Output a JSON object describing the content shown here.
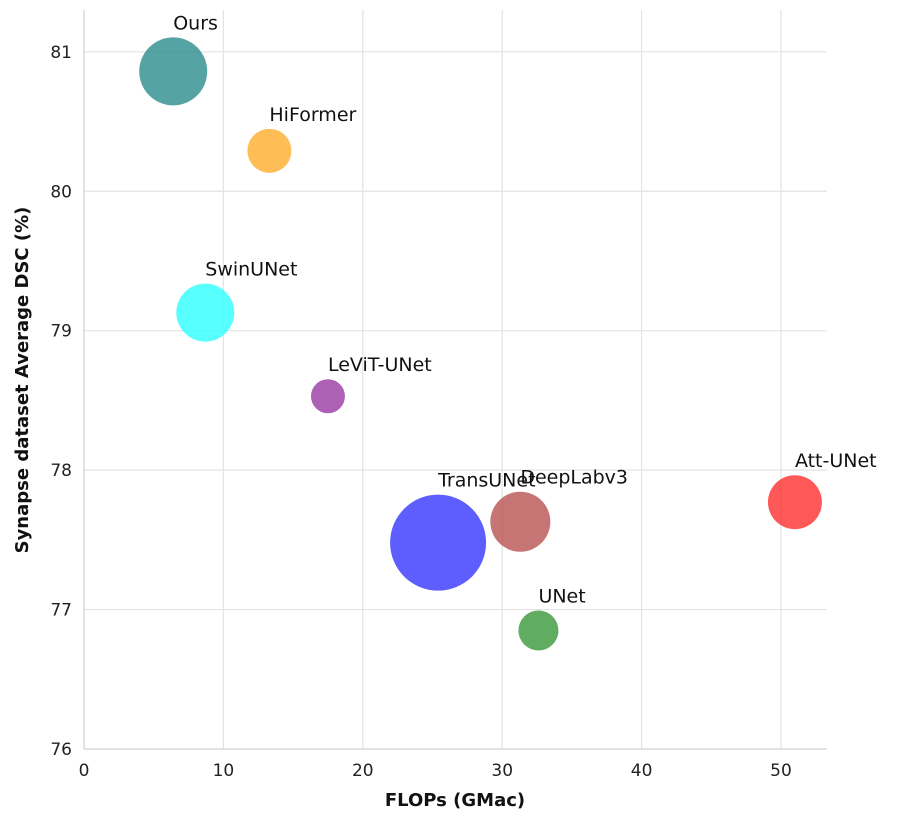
{
  "chart_data": {
    "type": "scatter",
    "title": "",
    "xlabel": "FLOPs (GMac)",
    "ylabel": "Synapse dataset Average DSC (%)",
    "xlim": [
      0,
      53.3
    ],
    "ylim": [
      76,
      81.3
    ],
    "xticks": [
      0,
      10,
      20,
      30,
      40,
      50
    ],
    "yticks": [
      76,
      77,
      78,
      79,
      80,
      81
    ],
    "grid": true,
    "legend": "none",
    "points": [
      {
        "label": "Ours",
        "x": 6.4,
        "y": 80.86,
        "bubble_size": 34,
        "color": "#2f8f8f"
      },
      {
        "label": "HiFormer",
        "x": 13.3,
        "y": 80.29,
        "bubble_size": 22,
        "color": "#ffb030"
      },
      {
        "label": "SwinUNet",
        "x": 8.7,
        "y": 79.13,
        "bubble_size": 29,
        "color": "#33ffff"
      },
      {
        "label": "LeViT-UNet",
        "x": 17.5,
        "y": 78.53,
        "bubble_size": 17,
        "color": "#9a3ea6"
      },
      {
        "label": "TransUNet",
        "x": 25.4,
        "y": 77.48,
        "bubble_size": 48,
        "color": "#3a3aff"
      },
      {
        "label": "DeepLabv3",
        "x": 31.3,
        "y": 77.63,
        "bubble_size": 30,
        "color": "#bb5555"
      },
      {
        "label": "Att-UNet",
        "x": 51.0,
        "y": 77.77,
        "bubble_size": 27,
        "color": "#ff3333"
      },
      {
        "label": "UNet",
        "x": 32.6,
        "y": 76.85,
        "bubble_size": 20,
        "color": "#3d9a3d"
      }
    ]
  }
}
